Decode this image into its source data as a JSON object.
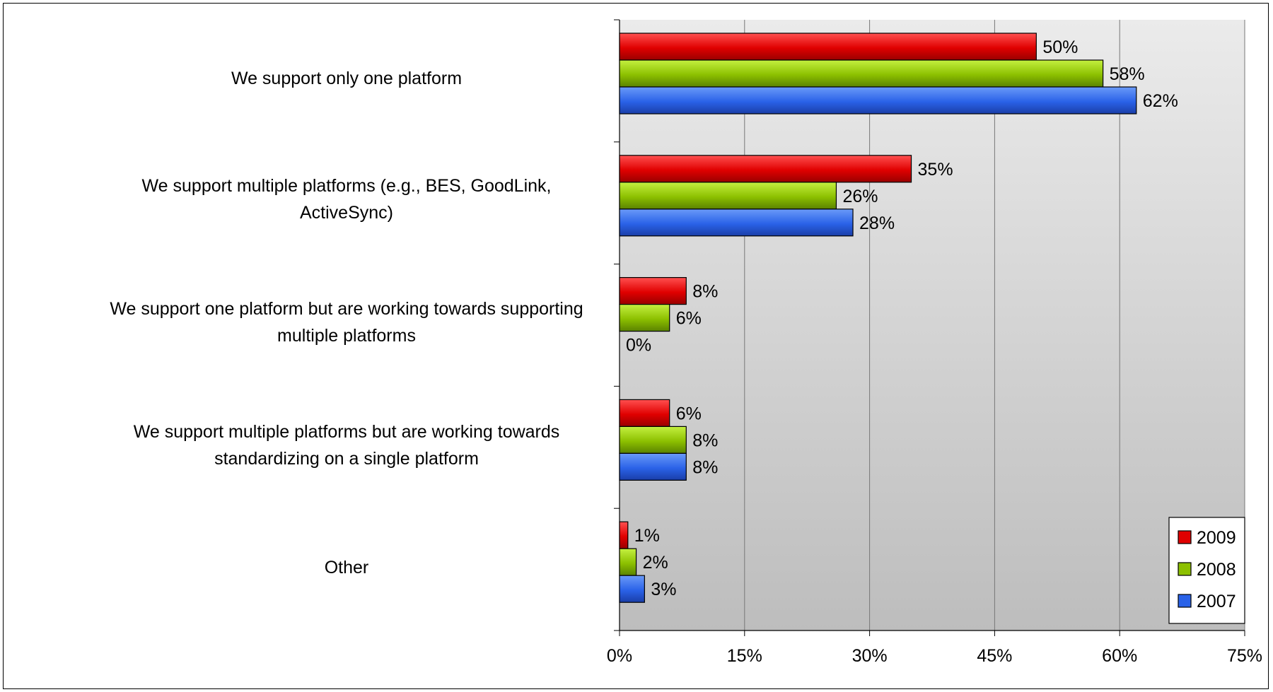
{
  "chart_data": {
    "type": "bar",
    "orientation": "horizontal",
    "categories": [
      "We support only one platform",
      "We support multiple platforms (e.g., BES, GoodLink, ActiveSync)",
      "We support one platform but are working towards supporting multiple platforms",
      "We support multiple platforms but are working towards standardizing on a single platform",
      "Other"
    ],
    "series": [
      {
        "name": "2009",
        "color": "#e00000",
        "values": [
          50,
          35,
          8,
          6,
          1
        ],
        "value_labels": [
          "50%",
          "35%",
          "8%",
          "6%",
          "1%"
        ]
      },
      {
        "name": "2008",
        "color": "#8cc000",
        "values": [
          58,
          26,
          6,
          8,
          2
        ],
        "value_labels": [
          "58%",
          "26%",
          "6%",
          "8%",
          "2%"
        ]
      },
      {
        "name": "2007",
        "color": "#2a62e8",
        "values": [
          62,
          28,
          0,
          8,
          3
        ],
        "value_labels": [
          "62%",
          "28%",
          "0%",
          "8%",
          "3%"
        ]
      }
    ],
    "xlim": [
      0,
      75
    ],
    "x_ticks": [
      0,
      15,
      30,
      45,
      60,
      75
    ],
    "x_tick_labels": [
      "0%",
      "15%",
      "30%",
      "45%",
      "60%",
      "75%"
    ],
    "grid": true,
    "legend_position": "bottom-right",
    "title": "",
    "xlabel": "",
    "ylabel": ""
  },
  "category_labels": [
    {
      "lines": [
        "We support only one platform"
      ]
    },
    {
      "lines": [
        "We support multiple platforms (e.g., BES, GoodLink,",
        "ActiveSync)"
      ]
    },
    {
      "lines": [
        "We support one platform but are working towards supporting",
        "multiple platforms"
      ]
    },
    {
      "lines": [
        "We support multiple platforms but are working towards",
        "standardizing on a single platform"
      ]
    },
    {
      "lines": [
        "Other"
      ]
    }
  ]
}
